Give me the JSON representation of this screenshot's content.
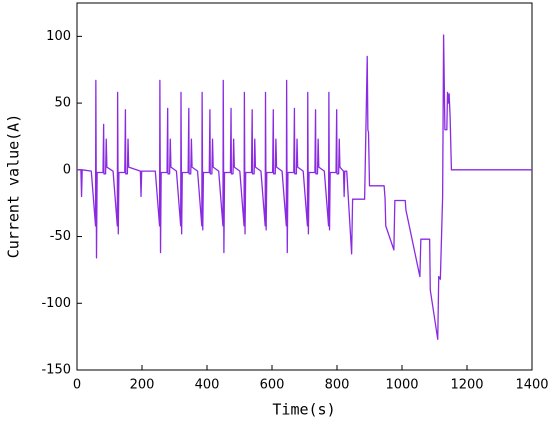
{
  "chart_data": {
    "type": "line",
    "xlabel": "Time(s)",
    "ylabel": "Current value(A)",
    "xlim": [
      0,
      1400
    ],
    "xticks": [
      0,
      200,
      400,
      600,
      800,
      1000,
      1200,
      1400
    ],
    "ylim": [
      -150,
      125
    ],
    "yticks": [
      -150,
      -100,
      -50,
      0,
      50,
      100
    ],
    "series": [
      {
        "color": "#8a2be2",
        "x": [
          0,
          12,
          14,
          16,
          44,
          57,
          58,
          60,
          62,
          80,
          82,
          83,
          88,
          90,
          92,
          111,
          124,
          125,
          127,
          129,
          147,
          149,
          150,
          155,
          157,
          159,
          195,
          197,
          199,
          241,
          254,
          255,
          257,
          259,
          277,
          279,
          280,
          285,
          287,
          289,
          306,
          319,
          320,
          322,
          324,
          342,
          344,
          345,
          350,
          352,
          354,
          371,
          384,
          385,
          387,
          389,
          407,
          409,
          410,
          415,
          417,
          419,
          436,
          449,
          450,
          452,
          454,
          472,
          474,
          475,
          480,
          482,
          484,
          501,
          514,
          515,
          517,
          519,
          537,
          539,
          540,
          545,
          547,
          549,
          566,
          579,
          580,
          582,
          584,
          602,
          604,
          605,
          610,
          612,
          614,
          631,
          644,
          645,
          647,
          649,
          667,
          669,
          670,
          675,
          677,
          679,
          696,
          709,
          710,
          712,
          714,
          732,
          734,
          735,
          740,
          742,
          744,
          761,
          774,
          775,
          777,
          779,
          797,
          799,
          800,
          805,
          807,
          809,
          820,
          822,
          824,
          830,
          845,
          848,
          885,
          893,
          895,
          897,
          900,
          945,
          948,
          950,
          975,
          978,
          1010,
          1012,
          1055,
          1058,
          1085,
          1087,
          1110,
          1113,
          1118,
          1125,
          1128,
          1132,
          1138,
          1140,
          1143,
          1145,
          1148,
          1152,
          1400
        ],
        "values": [
          0,
          0,
          -20,
          0,
          -1,
          -42,
          67,
          -66,
          -2,
          -2,
          34,
          -3,
          -3,
          23,
          2,
          -1,
          -42,
          58,
          -48,
          -2,
          -2,
          45,
          -3,
          -3,
          23,
          2,
          -1,
          -20,
          -1,
          -1,
          -42,
          67,
          -62,
          -2,
          -2,
          46,
          -3,
          -3,
          23,
          2,
          -1,
          -42,
          58,
          -48,
          -2,
          -2,
          46,
          -3,
          -3,
          23,
          2,
          -1,
          -42,
          58,
          -45,
          -2,
          -2,
          45,
          -3,
          -3,
          23,
          2,
          -1,
          -42,
          67,
          -62,
          -2,
          -2,
          46,
          -3,
          -3,
          23,
          2,
          -1,
          -42,
          58,
          -48,
          -2,
          -2,
          45,
          -3,
          -3,
          23,
          2,
          -1,
          -42,
          58,
          -45,
          -2,
          -2,
          45,
          -3,
          -3,
          23,
          2,
          -1,
          -42,
          67,
          -62,
          -2,
          -2,
          46,
          -3,
          -3,
          23,
          2,
          -1,
          -42,
          58,
          -48,
          -2,
          -2,
          45,
          -3,
          -3,
          23,
          2,
          -1,
          -42,
          58,
          -45,
          -2,
          -2,
          45,
          -3,
          -3,
          23,
          2,
          -1,
          -20,
          -1,
          -1,
          -63,
          -22,
          -22,
          85,
          30,
          28,
          -12,
          -12,
          -22,
          -42,
          -60,
          -23,
          -23,
          -30,
          -80,
          -52,
          -52,
          -90,
          -127,
          -80,
          -82,
          -20,
          101,
          30,
          30,
          58,
          50,
          57,
          40,
          0,
          0
        ]
      }
    ]
  }
}
